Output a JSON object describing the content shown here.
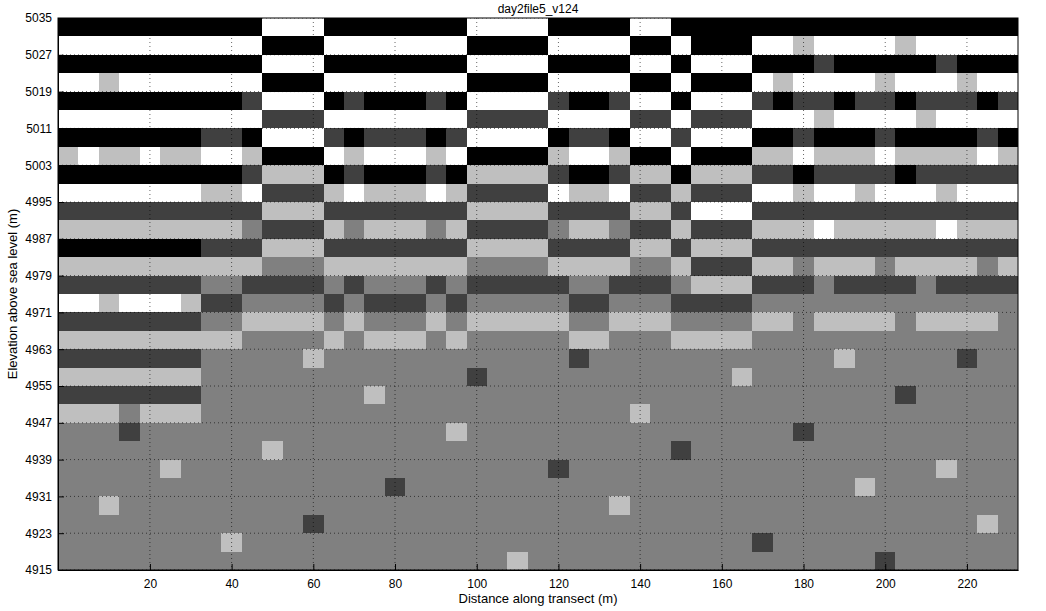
{
  "chart_data": {
    "type": "heatmap",
    "title": "day2file5_v124",
    "x_label": "Distance along transect (m)",
    "y_label": "Elevation above sea level (m)",
    "xlim": [
      -2.5,
      232.5
    ],
    "ylim": [
      4915,
      5035
    ],
    "xticks": [
      20,
      40,
      60,
      80,
      100,
      120,
      140,
      160,
      180,
      200,
      220
    ],
    "yticks": [
      4915,
      4923,
      4931,
      4939,
      4947,
      4955,
      4963,
      4971,
      4979,
      4987,
      4995,
      5003,
      5011,
      5019,
      5027,
      5035
    ],
    "grid": true,
    "zlim": [
      -2,
      2
    ],
    "x": [
      0,
      5,
      10,
      15,
      20,
      25,
      30,
      35,
      40,
      45,
      50,
      55,
      60,
      65,
      70,
      75,
      80,
      85,
      90,
      95,
      100,
      105,
      110,
      115,
      120,
      125,
      130,
      135,
      140,
      145,
      150,
      155,
      160,
      165,
      170,
      175,
      180,
      185,
      190,
      195,
      200,
      205,
      210,
      215,
      220,
      225,
      230
    ],
    "y": [
      5033,
      5029,
      5025,
      5021,
      5017,
      5013,
      5009,
      5005,
      5001,
      4997,
      4993,
      4989,
      4985,
      4981,
      4977,
      4973,
      4969,
      4965,
      4961,
      4957,
      4953,
      4949,
      4945,
      4941,
      4937,
      4933,
      4929,
      4925,
      4921,
      4917
    ],
    "z": [
      [
        -2,
        -2,
        -2,
        -2,
        -2,
        -2,
        -2,
        -2,
        -2,
        -2,
        2,
        2,
        2,
        -2,
        -2,
        -2,
        -2,
        -2,
        -2,
        -2,
        2,
        2,
        2,
        2,
        -2,
        -2,
        -2,
        -2,
        2,
        2,
        -2,
        -2,
        -2,
        -2,
        -2,
        -2,
        -2,
        -2,
        -2,
        -2,
        -2,
        -2,
        -2,
        -2,
        -2,
        -2,
        -2
      ],
      [
        2,
        2,
        2,
        2,
        2,
        2,
        2,
        2,
        2,
        2,
        -2,
        -2,
        -2,
        2,
        2,
        2,
        2,
        2,
        2,
        2,
        -2,
        -2,
        -2,
        -2,
        2,
        2,
        2,
        2,
        -2,
        -2,
        2,
        -2,
        -2,
        -2,
        2,
        2,
        1,
        2,
        2,
        2,
        2,
        1,
        2,
        2,
        2,
        2,
        2
      ],
      [
        -2,
        -2,
        -2,
        -2,
        -2,
        -2,
        -2,
        -2,
        -2,
        -2,
        2,
        2,
        2,
        -2,
        -2,
        -2,
        -2,
        -2,
        -2,
        -2,
        2,
        2,
        2,
        2,
        -2,
        -2,
        -2,
        -2,
        2,
        2,
        -2,
        2,
        2,
        2,
        -2,
        -2,
        -2,
        -1,
        -2,
        -2,
        -2,
        -2,
        -2,
        -1,
        -2,
        -2,
        -2
      ],
      [
        2,
        2,
        1,
        2,
        2,
        2,
        2,
        2,
        2,
        2,
        -2,
        -2,
        -2,
        2,
        2,
        2,
        2,
        2,
        2,
        2,
        -2,
        -2,
        -2,
        -2,
        2,
        2,
        2,
        2,
        -2,
        -2,
        2,
        -2,
        -2,
        -2,
        2,
        1,
        2,
        2,
        2,
        2,
        1,
        2,
        2,
        2,
        1,
        2,
        2
      ],
      [
        -2,
        -2,
        -2,
        -2,
        -2,
        -2,
        -2,
        -2,
        -2,
        -1,
        2,
        2,
        2,
        -2,
        -1,
        -2,
        -2,
        -2,
        -1,
        -2,
        2,
        2,
        2,
        2,
        -1,
        -2,
        -2,
        -1,
        2,
        2,
        -2,
        2,
        2,
        2,
        -1,
        -2,
        -1,
        -1,
        -2,
        -1,
        -1,
        -2,
        -1,
        -1,
        -1,
        -2,
        -1
      ],
      [
        2,
        2,
        2,
        2,
        2,
        2,
        2,
        2,
        2,
        2,
        -1,
        -1,
        -1,
        2,
        2,
        2,
        2,
        2,
        2,
        2,
        -1,
        -1,
        -1,
        -1,
        2,
        2,
        2,
        2,
        -1,
        -1,
        2,
        -1,
        -1,
        -1,
        2,
        2,
        2,
        1,
        2,
        2,
        2,
        2,
        1,
        2,
        2,
        2,
        2
      ],
      [
        -2,
        -2,
        -2,
        -2,
        -2,
        -2,
        -2,
        -1,
        -1,
        -2,
        2,
        2,
        2,
        -1,
        -2,
        -1,
        -1,
        -1,
        -2,
        -1,
        2,
        2,
        2,
        2,
        -2,
        -1,
        -1,
        -2,
        2,
        2,
        -1,
        2,
        2,
        2,
        -2,
        -2,
        -1,
        -2,
        -2,
        -2,
        -1,
        -2,
        -2,
        -2,
        -2,
        -1,
        -2
      ],
      [
        1,
        2,
        1,
        1,
        2,
        1,
        1,
        2,
        2,
        1,
        -2,
        -2,
        -2,
        2,
        1,
        2,
        2,
        2,
        1,
        2,
        -2,
        -2,
        -2,
        -2,
        1,
        2,
        2,
        1,
        -2,
        -2,
        2,
        -2,
        -2,
        -2,
        1,
        1,
        2,
        1,
        1,
        1,
        2,
        1,
        1,
        1,
        1,
        2,
        1
      ],
      [
        -2,
        -2,
        -2,
        -2,
        -2,
        -2,
        -2,
        -2,
        -2,
        -1,
        1,
        1,
        1,
        -2,
        -1,
        -2,
        -2,
        -2,
        -1,
        -2,
        1,
        1,
        1,
        1,
        -1,
        -2,
        -2,
        -1,
        1,
        1,
        -2,
        1,
        1,
        1,
        -1,
        -1,
        -2,
        -1,
        -1,
        -1,
        -1,
        -2,
        -1,
        -1,
        -1,
        -1,
        -1
      ],
      [
        2,
        2,
        2,
        2,
        2,
        2,
        2,
        1,
        1,
        2,
        -1,
        -1,
        -1,
        1,
        2,
        1,
        1,
        1,
        2,
        1,
        -1,
        -1,
        -1,
        -1,
        2,
        1,
        1,
        2,
        -1,
        -1,
        1,
        -1,
        -1,
        -1,
        2,
        2,
        1,
        2,
        2,
        1,
        2,
        2,
        2,
        1,
        2,
        2,
        2
      ],
      [
        -1,
        -1,
        -1,
        -1,
        -1,
        -1,
        -1,
        -1,
        -1,
        -1,
        1,
        1,
        1,
        -1,
        -1,
        -1,
        -1,
        -1,
        -1,
        -1,
        1,
        1,
        1,
        1,
        -1,
        -1,
        -1,
        -1,
        1,
        1,
        -1,
        2,
        2,
        2,
        -1,
        -1,
        -1,
        -1,
        -1,
        -1,
        -1,
        -1,
        -1,
        -1,
        -1,
        -1,
        -1
      ],
      [
        1,
        1,
        1,
        1,
        1,
        1,
        1,
        1,
        1,
        0,
        -1,
        -1,
        -1,
        1,
        0,
        1,
        1,
        1,
        0,
        1,
        -1,
        -1,
        -1,
        -1,
        0,
        1,
        1,
        0,
        -1,
        -1,
        1,
        -1,
        -1,
        -1,
        1,
        1,
        1,
        2,
        1,
        1,
        1,
        1,
        1,
        2,
        1,
        1,
        1
      ],
      [
        -2,
        -2,
        -2,
        -2,
        -2,
        -2,
        -2,
        -1,
        -1,
        -1,
        1,
        1,
        1,
        -1,
        -1,
        -1,
        -1,
        -1,
        -1,
        -1,
        1,
        1,
        1,
        1,
        -1,
        -1,
        -1,
        -1,
        1,
        1,
        -1,
        1,
        1,
        1,
        -1,
        -1,
        -1,
        -1,
        -1,
        -1,
        -1,
        -1,
        -1,
        -1,
        -1,
        -1,
        -1
      ],
      [
        1,
        1,
        1,
        1,
        1,
        1,
        1,
        1,
        1,
        1,
        0,
        0,
        0,
        1,
        1,
        1,
        1,
        1,
        1,
        1,
        0,
        0,
        0,
        0,
        1,
        1,
        1,
        1,
        0,
        0,
        1,
        -1,
        -1,
        -1,
        1,
        1,
        0,
        1,
        1,
        1,
        0,
        1,
        1,
        1,
        1,
        0,
        1
      ],
      [
        -1,
        -1,
        -1,
        -1,
        -1,
        -1,
        -1,
        0,
        0,
        -1,
        -1,
        -1,
        -1,
        0,
        -1,
        0,
        0,
        0,
        -1,
        0,
        -1,
        -1,
        -1,
        -1,
        -1,
        0,
        0,
        -1,
        -1,
        -1,
        0,
        1,
        1,
        1,
        -1,
        -1,
        -1,
        0,
        -1,
        -1,
        -1,
        -1,
        0,
        -1,
        -1,
        -1,
        -1
      ],
      [
        2,
        2,
        1,
        2,
        2,
        2,
        1,
        -1,
        -1,
        0,
        0,
        0,
        0,
        -1,
        0,
        -1,
        -1,
        -1,
        0,
        -1,
        0,
        0,
        0,
        0,
        0,
        -1,
        -1,
        0,
        0,
        0,
        -1,
        -1,
        -1,
        -1,
        0,
        0,
        0,
        0,
        0,
        0,
        0,
        0,
        0,
        0,
        0,
        0,
        0
      ],
      [
        -1,
        -1,
        -1,
        -1,
        -1,
        -1,
        -1,
        0,
        0,
        1,
        1,
        1,
        1,
        0,
        1,
        0,
        0,
        0,
        1,
        0,
        1,
        1,
        1,
        1,
        1,
        0,
        0,
        1,
        1,
        1,
        0,
        0,
        0,
        0,
        1,
        1,
        0,
        1,
        1,
        1,
        1,
        0,
        1,
        1,
        1,
        1,
        0
      ],
      [
        1,
        1,
        1,
        1,
        1,
        1,
        1,
        1,
        1,
        0,
        0,
        0,
        0,
        1,
        0,
        1,
        1,
        1,
        0,
        1,
        0,
        0,
        0,
        0,
        0,
        1,
        1,
        0,
        0,
        0,
        1,
        1,
        1,
        1,
        0,
        0,
        0,
        0,
        0,
        0,
        0,
        0,
        0,
        0,
        0,
        0,
        0
      ],
      [
        -1,
        -1,
        -1,
        -1,
        -1,
        -1,
        -1,
        0,
        0,
        0,
        0,
        0,
        1,
        0,
        0,
        0,
        0,
        0,
        0,
        0,
        0,
        0,
        0,
        0,
        0,
        -1,
        0,
        0,
        0,
        0,
        0,
        0,
        0,
        0,
        0,
        0,
        0,
        0,
        1,
        0,
        0,
        0,
        0,
        0,
        -1,
        0,
        0
      ],
      [
        1,
        1,
        1,
        1,
        1,
        1,
        1,
        0,
        0,
        0,
        0,
        0,
        0,
        0,
        0,
        0,
        0,
        0,
        0,
        0,
        -1,
        0,
        0,
        0,
        0,
        0,
        0,
        0,
        0,
        0,
        0,
        0,
        0,
        1,
        0,
        0,
        0,
        0,
        0,
        0,
        0,
        0,
        0,
        0,
        0,
        0,
        0
      ],
      [
        -1,
        -1,
        -1,
        -1,
        -1,
        -1,
        -1,
        0,
        0,
        0,
        0,
        0,
        0,
        0,
        0,
        1,
        0,
        0,
        0,
        0,
        0,
        0,
        0,
        0,
        0,
        0,
        0,
        0,
        0,
        0,
        0,
        0,
        0,
        0,
        0,
        0,
        0,
        0,
        0,
        0,
        0,
        -1,
        0,
        0,
        0,
        0,
        0
      ],
      [
        1,
        1,
        1,
        0,
        1,
        1,
        1,
        0,
        0,
        0,
        0,
        0,
        0,
        0,
        0,
        0,
        0,
        0,
        0,
        0,
        0,
        0,
        0,
        0,
        0,
        0,
        0,
        0,
        1,
        0,
        0,
        0,
        0,
        0,
        0,
        0,
        0,
        0,
        0,
        0,
        0,
        0,
        0,
        0,
        0,
        0,
        0
      ],
      [
        0,
        0,
        0,
        -1,
        0,
        0,
        0,
        0,
        0,
        0,
        0,
        0,
        0,
        0,
        0,
        0,
        0,
        0,
        0,
        1,
        0,
        0,
        0,
        0,
        0,
        0,
        0,
        0,
        0,
        0,
        0,
        0,
        0,
        0,
        0,
        0,
        -1,
        0,
        0,
        0,
        0,
        0,
        0,
        0,
        0,
        0,
        0
      ],
      [
        0,
        0,
        0,
        0,
        0,
        0,
        0,
        0,
        0,
        0,
        1,
        0,
        0,
        0,
        0,
        0,
        0,
        0,
        0,
        0,
        0,
        0,
        0,
        0,
        0,
        0,
        0,
        0,
        0,
        0,
        -1,
        0,
        0,
        0,
        0,
        0,
        0,
        0,
        0,
        0,
        0,
        0,
        0,
        0,
        0,
        0,
        0
      ],
      [
        0,
        0,
        0,
        0,
        0,
        1,
        0,
        0,
        0,
        0,
        0,
        0,
        0,
        0,
        0,
        0,
        0,
        0,
        0,
        0,
        0,
        0,
        0,
        0,
        -1,
        0,
        0,
        0,
        0,
        0,
        0,
        0,
        0,
        0,
        0,
        0,
        0,
        0,
        0,
        0,
        0,
        0,
        0,
        1,
        0,
        0,
        0
      ],
      [
        0,
        0,
        0,
        0,
        0,
        0,
        0,
        0,
        0,
        0,
        0,
        0,
        0,
        0,
        0,
        0,
        -1,
        0,
        0,
        0,
        0,
        0,
        0,
        0,
        0,
        0,
        0,
        0,
        0,
        0,
        0,
        0,
        0,
        0,
        0,
        0,
        0,
        0,
        0,
        1,
        0,
        0,
        0,
        0,
        0,
        0,
        0
      ],
      [
        0,
        0,
        1,
        0,
        0,
        0,
        0,
        0,
        0,
        0,
        0,
        0,
        0,
        0,
        0,
        0,
        0,
        0,
        0,
        0,
        0,
        0,
        0,
        0,
        0,
        0,
        0,
        1,
        0,
        0,
        0,
        0,
        0,
        0,
        0,
        0,
        0,
        0,
        0,
        0,
        0,
        0,
        0,
        0,
        0,
        0,
        0
      ],
      [
        0,
        0,
        0,
        0,
        0,
        0,
        0,
        0,
        0,
        0,
        0,
        0,
        -1,
        0,
        0,
        0,
        0,
        0,
        0,
        0,
        0,
        0,
        0,
        0,
        0,
        0,
        0,
        0,
        0,
        0,
        0,
        0,
        0,
        0,
        0,
        0,
        0,
        0,
        0,
        0,
        0,
        0,
        0,
        0,
        0,
        1,
        0
      ],
      [
        0,
        0,
        0,
        0,
        0,
        0,
        0,
        0,
        1,
        0,
        0,
        0,
        0,
        0,
        0,
        0,
        0,
        0,
        0,
        0,
        0,
        0,
        0,
        0,
        0,
        0,
        0,
        0,
        0,
        0,
        0,
        0,
        0,
        0,
        -1,
        0,
        0,
        0,
        0,
        0,
        0,
        0,
        0,
        0,
        0,
        0,
        0
      ],
      [
        0,
        0,
        0,
        0,
        0,
        0,
        0,
        0,
        0,
        0,
        0,
        0,
        0,
        0,
        0,
        0,
        0,
        0,
        0,
        0,
        0,
        0,
        1,
        0,
        0,
        0,
        0,
        0,
        0,
        0,
        0,
        0,
        0,
        0,
        0,
        0,
        0,
        0,
        0,
        0,
        -1,
        0,
        0,
        0,
        0,
        0,
        0
      ]
    ]
  }
}
